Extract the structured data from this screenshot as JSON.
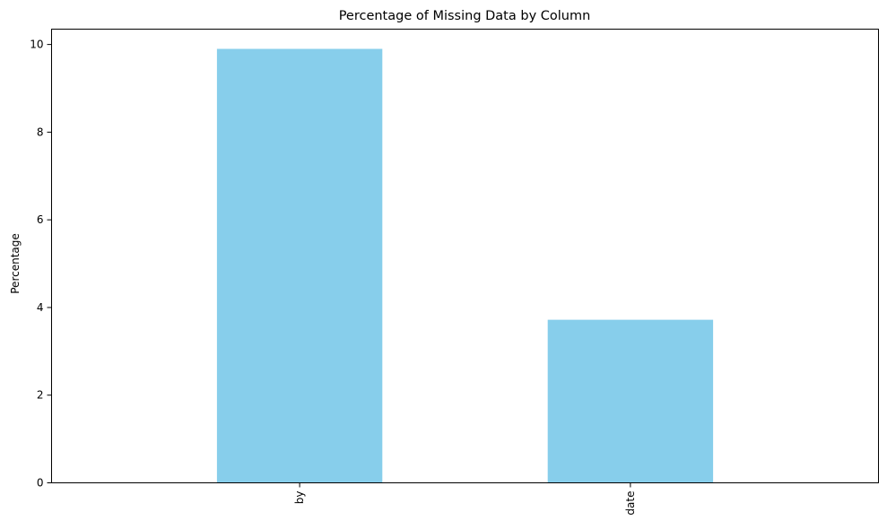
{
  "chart_data": {
    "type": "bar",
    "title": "Percentage of Missing Data by Column",
    "xlabel": "",
    "ylabel": "Percentage",
    "categories": [
      "by",
      "date"
    ],
    "values": [
      9.9,
      3.72
    ],
    "ylim": [
      0,
      10.35
    ],
    "yticks": [
      0,
      2,
      4,
      6,
      8,
      10
    ],
    "grid": false,
    "bar_color": "#87CEEB"
  }
}
